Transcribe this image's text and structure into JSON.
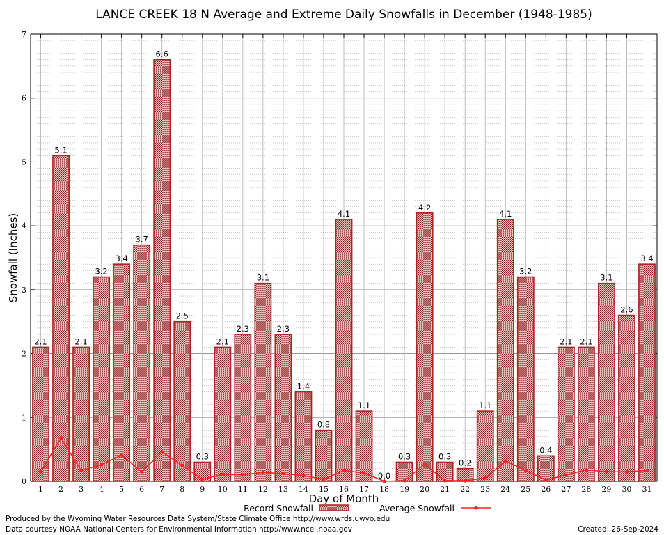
{
  "chart_data": {
    "type": "bar",
    "title": "LANCE CREEK 18 N Average and Extreme Daily Snowfalls in December (1948-1985)",
    "xlabel": "Day of Month",
    "ylabel": "Snowfall (Inches)",
    "ylim": [
      0,
      7
    ],
    "yticks": [
      "0",
      "1",
      "2",
      "3",
      "4",
      "5",
      "6",
      "7"
    ],
    "grid": true,
    "legend_position": "bottom",
    "categories": [
      "1",
      "2",
      "3",
      "4",
      "5",
      "6",
      "7",
      "8",
      "9",
      "10",
      "11",
      "12",
      "13",
      "14",
      "15",
      "16",
      "17",
      "18",
      "19",
      "20",
      "21",
      "22",
      "23",
      "24",
      "25",
      "26",
      "27",
      "28",
      "29",
      "30",
      "31"
    ],
    "series": [
      {
        "name": "Record Snowfall",
        "kind": "bar",
        "color": "#b22222",
        "values": [
          2.1,
          5.1,
          2.1,
          3.2,
          3.4,
          3.7,
          6.6,
          2.5,
          0.3,
          2.1,
          2.3,
          3.1,
          2.3,
          1.4,
          0.8,
          4.1,
          1.1,
          0.0,
          0.3,
          4.2,
          0.3,
          0.2,
          1.1,
          4.1,
          3.2,
          0.4,
          2.1,
          2.1,
          3.1,
          2.6,
          3.4
        ],
        "labels": [
          "2.1",
          "5.1",
          "2.1",
          "3.2",
          "3.4",
          "3.7",
          "6.6",
          "2.5",
          "0.3",
          "2.1",
          "2.3",
          "3.1",
          "2.3",
          "1.4",
          "0.8",
          "4.1",
          "1.1",
          "0.0",
          "0.3",
          "4.2",
          "0.3",
          "0.2",
          "1.1",
          "4.1",
          "3.2",
          "0.4",
          "2.1",
          "2.1",
          "3.1",
          "2.6",
          "3.4"
        ]
      },
      {
        "name": "Average Snowfall",
        "kind": "line",
        "color": "#ff2020",
        "values": [
          0.15,
          0.68,
          0.17,
          0.26,
          0.41,
          0.15,
          0.46,
          0.25,
          0.03,
          0.11,
          0.1,
          0.14,
          0.12,
          0.09,
          0.03,
          0.17,
          0.13,
          0.0,
          0.01,
          0.27,
          0.01,
          0.01,
          0.05,
          0.32,
          0.17,
          0.02,
          0.1,
          0.18,
          0.15,
          0.15,
          0.17
        ]
      }
    ]
  },
  "footer": {
    "line1": "Produced by the Wyoming Water Resources Data System/State Climate Office http://www.wrds.uwyo.edu",
    "line2": "Data courtesy NOAA National Centers for Environmental Information http://www.ncei.noaa.gov",
    "created": "Created:  26-Sep-2024"
  }
}
